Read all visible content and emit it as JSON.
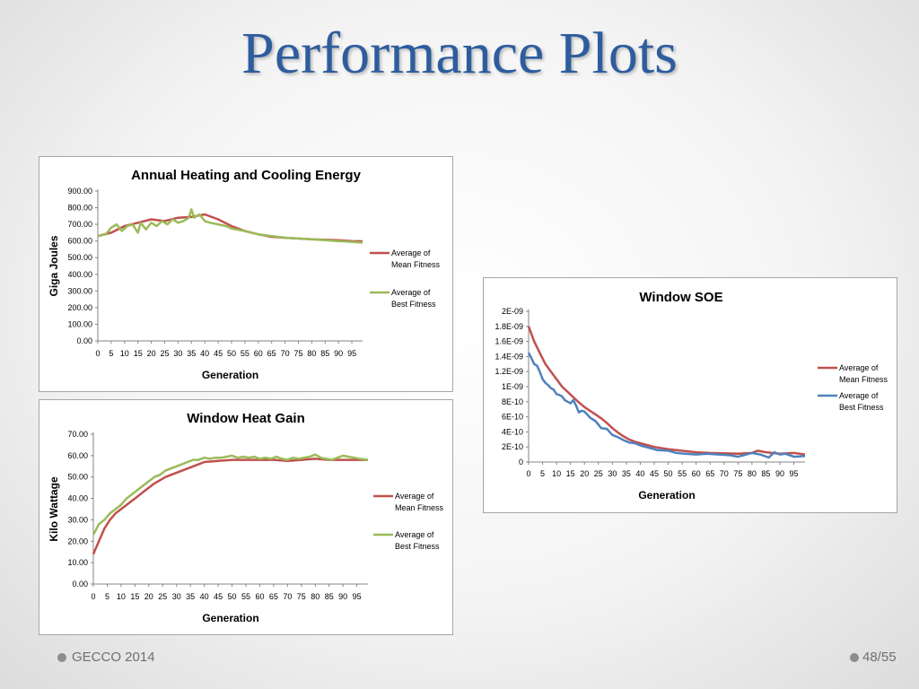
{
  "slide": {
    "title": "Performance Plots",
    "footer_left": "GECCO 2014",
    "page_number": "48/55"
  },
  "chart_data": [
    {
      "type": "line",
      "title": "Annual Heating and Cooling Energy",
      "xlabel": "Generation",
      "ylabel": "Giga Joules",
      "xlim": [
        0,
        99
      ],
      "ylim": [
        0,
        900
      ],
      "x_ticks": [
        "0",
        "5",
        "10",
        "15",
        "20",
        "25",
        "30",
        "35",
        "40",
        "45",
        "50",
        "55",
        "60",
        "65",
        "70",
        "75",
        "80",
        "85",
        "90",
        "95"
      ],
      "y_ticks": [
        "0.00",
        "100.00",
        "200.00",
        "300.00",
        "400.00",
        "500.00",
        "600.00",
        "700.00",
        "800.00",
        "900.00"
      ],
      "legend": "right",
      "grid": false,
      "series": [
        {
          "name": "Average of Mean Fitness",
          "color": "#c0504d",
          "x": [
            0,
            5,
            10,
            15,
            20,
            25,
            30,
            35,
            40,
            45,
            50,
            55,
            60,
            65,
            70,
            75,
            80,
            85,
            90,
            95,
            99
          ],
          "values": [
            630,
            650,
            690,
            710,
            730,
            720,
            740,
            745,
            760,
            730,
            690,
            660,
            640,
            625,
            620,
            615,
            610,
            608,
            605,
            600,
            598
          ]
        },
        {
          "name": "Average of Best Fitness",
          "color": "#9bbb59",
          "x": [
            0,
            3,
            5,
            7,
            9,
            11,
            13,
            15,
            16,
            18,
            20,
            22,
            24,
            26,
            28,
            30,
            32,
            34,
            35,
            36,
            38,
            40,
            42,
            45,
            48,
            50,
            55,
            60,
            65,
            70,
            75,
            80,
            85,
            90,
            95,
            99
          ],
          "values": [
            630,
            640,
            680,
            700,
            660,
            690,
            700,
            650,
            710,
            670,
            710,
            690,
            720,
            700,
            730,
            710,
            720,
            740,
            790,
            740,
            760,
            720,
            710,
            700,
            690,
            675,
            660,
            640,
            630,
            620,
            615,
            610,
            605,
            600,
            595,
            590
          ]
        }
      ]
    },
    {
      "type": "line",
      "title": "Window Heat Gain",
      "xlabel": "Generation",
      "ylabel": "Kilo Wattage",
      "xlim": [
        0,
        99
      ],
      "ylim": [
        0,
        70
      ],
      "x_ticks": [
        "0",
        "5",
        "10",
        "15",
        "20",
        "25",
        "30",
        "35",
        "40",
        "45",
        "50",
        "55",
        "60",
        "65",
        "70",
        "75",
        "80",
        "85",
        "90",
        "95"
      ],
      "y_ticks": [
        "0.00",
        "10.00",
        "20.00",
        "30.00",
        "40.00",
        "50.00",
        "60.00",
        "70.00"
      ],
      "legend": "right",
      "grid": false,
      "series": [
        {
          "name": "Average of Mean Fitness",
          "color": "#c0504d",
          "x": [
            0,
            2,
            4,
            6,
            8,
            10,
            12,
            14,
            16,
            18,
            20,
            22,
            24,
            26,
            28,
            30,
            32,
            34,
            36,
            38,
            40,
            45,
            50,
            55,
            60,
            65,
            70,
            75,
            80,
            85,
            90,
            95,
            99
          ],
          "values": [
            14,
            20,
            26,
            30,
            33,
            35,
            37,
            39,
            41,
            43,
            45,
            47,
            48.5,
            50,
            51,
            52,
            53,
            54,
            55,
            56,
            57,
            57.5,
            58,
            58,
            58,
            58,
            57.5,
            58,
            58.5,
            58,
            58,
            58,
            58
          ]
        },
        {
          "name": "Average of Best Fitness",
          "color": "#9bbb59",
          "x": [
            0,
            2,
            4,
            6,
            8,
            10,
            12,
            14,
            16,
            18,
            20,
            22,
            24,
            26,
            28,
            30,
            32,
            34,
            36,
            38,
            40,
            42,
            44,
            46,
            48,
            50,
            52,
            54,
            56,
            58,
            60,
            62,
            64,
            66,
            68,
            70,
            72,
            74,
            76,
            78,
            80,
            82,
            84,
            86,
            88,
            90,
            92,
            94,
            96,
            99
          ],
          "values": [
            23,
            28,
            30,
            33,
            35,
            37,
            40,
            42,
            44,
            46,
            48,
            50,
            51,
            53,
            54,
            55,
            56,
            57,
            58,
            58,
            59,
            58.5,
            59,
            59,
            59.5,
            60,
            59,
            59.5,
            59,
            59.5,
            58.5,
            59,
            58.5,
            59.5,
            58.5,
            58,
            59,
            58.5,
            59,
            59.5,
            60.5,
            59,
            58.5,
            58,
            59,
            60,
            59.5,
            59,
            58.5,
            58
          ]
        }
      ]
    },
    {
      "type": "line",
      "title": "Window SOE",
      "xlabel": "Generation",
      "ylabel": "",
      "xlim": [
        0,
        99
      ],
      "ylim": [
        0,
        2e-09
      ],
      "x_ticks": [
        "0",
        "5",
        "10",
        "15",
        "20",
        "25",
        "30",
        "35",
        "40",
        "45",
        "50",
        "55",
        "60",
        "65",
        "70",
        "75",
        "80",
        "85",
        "90",
        "95"
      ],
      "y_ticks": [
        "0",
        "2E-10",
        "4E-10",
        "6E-10",
        "8E-10",
        "1E-09",
        "1.2E-09",
        "1.4E-09",
        "1.6E-09",
        "1.8E-09",
        "2E-09"
      ],
      "legend": "right",
      "grid": false,
      "series": [
        {
          "name": "Average of Mean Fitness",
          "color": "#c0504d",
          "x": [
            0,
            2,
            4,
            6,
            8,
            10,
            12,
            14,
            16,
            18,
            20,
            22,
            24,
            26,
            28,
            30,
            32,
            34,
            36,
            38,
            40,
            45,
            50,
            55,
            60,
            65,
            70,
            75,
            80,
            82,
            85,
            90,
            95,
            99
          ],
          "values": [
            1.8e-09,
            1.6e-09,
            1.45e-09,
            1.3e-09,
            1.2e-09,
            1.1e-09,
            1e-09,
            9.3e-10,
            8.6e-10,
            7.9e-10,
            7.3e-10,
            6.8e-10,
            6.3e-10,
            5.8e-10,
            5.2e-10,
            4.5e-10,
            3.9e-10,
            3.4e-10,
            3e-10,
            2.7e-10,
            2.5e-10,
            2e-10,
            1.7e-10,
            1.5e-10,
            1.3e-10,
            1.2e-10,
            1.15e-10,
            1.1e-10,
            1.2e-10,
            1.5e-10,
            1.3e-10,
            1.1e-10,
            1.2e-10,
            1e-10
          ]
        },
        {
          "name": "Average of Best Fitness",
          "color": "#4f81bd",
          "x": [
            0,
            1,
            2,
            3,
            4,
            5,
            6,
            7,
            8,
            9,
            10,
            11,
            12,
            13,
            14,
            15,
            16,
            17,
            18,
            19,
            20,
            22,
            24,
            26,
            28,
            30,
            32,
            34,
            36,
            38,
            40,
            43,
            46,
            50,
            53,
            56,
            60,
            64,
            68,
            72,
            75,
            78,
            80,
            83,
            86,
            88,
            90,
            92,
            95,
            99
          ],
          "values": [
            1.45e-09,
            1.38e-09,
            1.3e-09,
            1.28e-09,
            1.2e-09,
            1.1e-09,
            1.05e-09,
            1.02e-09,
            9.8e-10,
            9.6e-10,
            9e-10,
            8.9e-10,
            8.7e-10,
            8.2e-10,
            8e-10,
            7.8e-10,
            8.2e-10,
            7.5e-10,
            6.6e-10,
            6.8e-10,
            6.7e-10,
            5.9e-10,
            5.4e-10,
            4.5e-10,
            4.4e-10,
            3.6e-10,
            3.3e-10,
            2.9e-10,
            2.6e-10,
            2.5e-10,
            2.2e-10,
            1.9e-10,
            1.6e-10,
            1.5e-10,
            1.2e-10,
            1.1e-10,
            1e-10,
            1.1e-10,
            1e-10,
            9e-11,
            7e-11,
            1e-10,
            1.2e-10,
            1e-10,
            6e-11,
            1.3e-10,
            1e-10,
            1.1e-10,
            7e-11,
            8e-11
          ]
        }
      ]
    }
  ]
}
